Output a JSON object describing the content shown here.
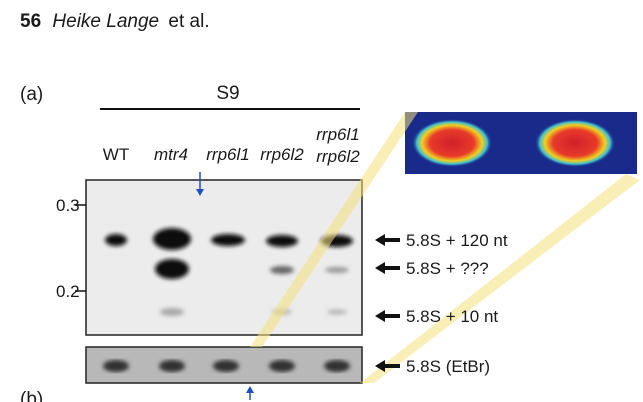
{
  "header": {
    "page": "56",
    "authors": "Heike Lange",
    "etal": "et al."
  },
  "figure": {
    "panel_a": "(a)",
    "panel_b": "(b)",
    "group": "S9",
    "lanes": [
      [
        "WT"
      ],
      [
        "mtr4"
      ],
      [
        "rrp6l1"
      ],
      [
        "rrp6l2"
      ],
      [
        "rrp6l1",
        "rrp6l2"
      ]
    ],
    "markers": [
      "0.3",
      "0.2"
    ],
    "bands": [
      "5.8S + 120 nt",
      "5.8S + ???",
      "5.8S + 10 nt",
      "5.8S (EtBr)"
    ]
  }
}
